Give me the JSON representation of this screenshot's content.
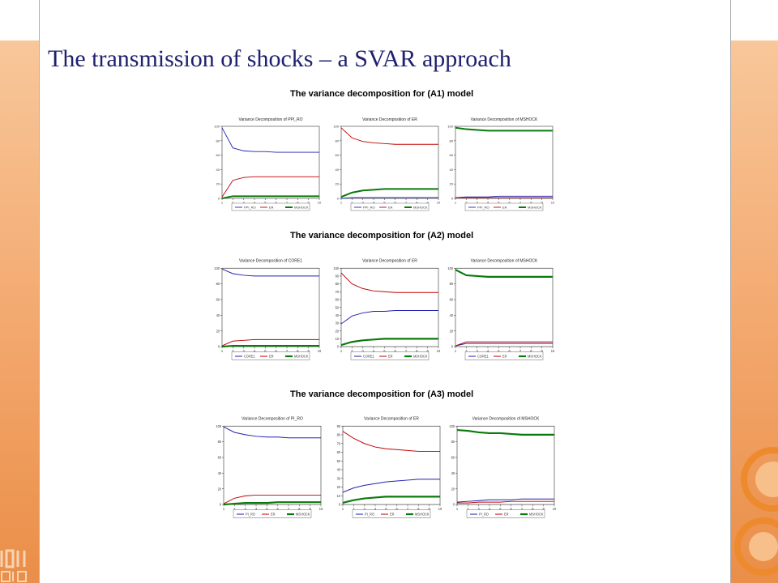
{
  "slide_title": "The transmission of shocks – a SVAR approach",
  "colors": {
    "title": "#1f2070",
    "blue": "#1f1fb0",
    "red": "#c00000",
    "green": "#0a7a0a",
    "accent": "#f0a060"
  },
  "sections": [
    {
      "title": "The variance decomposition for (A1) model"
    },
    {
      "title": "The variance decomposition for (A2) model"
    },
    {
      "title": "The variance decomposition for (A3) model"
    }
  ],
  "chart_data": [
    {
      "type": "line",
      "model": "A1",
      "title": "Variance Decomposition of PPI_RO",
      "x": [
        1,
        2,
        3,
        4,
        5,
        6,
        7,
        8,
        9,
        10
      ],
      "ylim": [
        0,
        100
      ],
      "yticks": [
        0,
        20,
        40,
        60,
        80,
        100
      ],
      "series": [
        {
          "name": "PPI_RO",
          "values": [
            98,
            70,
            66,
            65,
            65,
            64,
            64,
            64,
            64,
            64
          ]
        },
        {
          "name": "ER",
          "values": [
            2,
            25,
            29,
            30,
            30,
            30,
            30,
            30,
            30,
            30
          ]
        },
        {
          "name": "MSHOCK",
          "values": [
            0,
            3,
            3,
            3,
            3,
            3,
            3,
            3,
            3,
            3
          ]
        }
      ]
    },
    {
      "type": "line",
      "model": "A1",
      "title": "Variance Decomposition of ER",
      "x": [
        1,
        2,
        3,
        4,
        5,
        6,
        7,
        8,
        9,
        10
      ],
      "ylim": [
        0,
        100
      ],
      "yticks": [
        0,
        20,
        40,
        60,
        80,
        100
      ],
      "series": [
        {
          "name": "PPI_RO",
          "values": [
            0,
            1,
            1,
            1,
            1,
            1,
            1,
            1,
            1,
            1
          ]
        },
        {
          "name": "ER",
          "values": [
            98,
            84,
            79,
            77,
            76,
            75,
            75,
            75,
            75,
            75
          ]
        },
        {
          "name": "MSHOCK",
          "values": [
            2,
            8,
            11,
            12,
            13,
            13,
            13,
            13,
            13,
            13
          ]
        }
      ]
    },
    {
      "type": "line",
      "model": "A1",
      "title": "Variance Decomposition of MSHOCK",
      "x": [
        1,
        2,
        3,
        4,
        5,
        6,
        7,
        8,
        9,
        10
      ],
      "ylim": [
        0,
        100
      ],
      "yticks": [
        0,
        20,
        40,
        60,
        80,
        100
      ],
      "series": [
        {
          "name": "PPI_RO",
          "values": [
            1,
            2,
            2,
            2,
            3,
            3,
            3,
            3,
            3,
            3
          ]
        },
        {
          "name": "ER",
          "values": [
            1,
            1,
            1,
            1,
            1,
            1,
            1,
            1,
            1,
            1
          ]
        },
        {
          "name": "MSHOCK",
          "values": [
            98,
            96,
            95,
            94,
            94,
            94,
            94,
            94,
            94,
            94
          ]
        }
      ]
    },
    {
      "type": "line",
      "model": "A2",
      "title": "Variance Decomposition of CORE1",
      "x": [
        1,
        2,
        3,
        4,
        5,
        6,
        7,
        8,
        9,
        10
      ],
      "ylim": [
        0,
        100
      ],
      "yticks": [
        0,
        20,
        40,
        60,
        80,
        100
      ],
      "series": [
        {
          "name": "CORE1",
          "values": [
            99,
            93,
            91,
            90,
            90,
            90,
            90,
            90,
            90,
            90
          ]
        },
        {
          "name": "ER",
          "values": [
            1,
            7,
            8,
            9,
            9,
            9,
            9,
            9,
            9,
            9
          ]
        },
        {
          "name": "MSHOCK",
          "values": [
            0,
            1,
            1,
            1,
            1,
            1,
            1,
            1,
            1,
            1
          ]
        }
      ]
    },
    {
      "type": "line",
      "model": "A2",
      "title": "Variance Decomposition of ER",
      "x": [
        1,
        2,
        3,
        4,
        5,
        6,
        7,
        8,
        9,
        10
      ],
      "ylim": [
        0,
        100
      ],
      "yticks": [
        0,
        10,
        20,
        30,
        40,
        50,
        60,
        70,
        80,
        90,
        100
      ],
      "series": [
        {
          "name": "CORE1",
          "values": [
            29,
            39,
            43,
            45,
            45,
            46,
            46,
            46,
            46,
            46
          ]
        },
        {
          "name": "ER",
          "values": [
            94,
            80,
            74,
            71,
            70,
            69,
            69,
            69,
            69,
            69
          ]
        },
        {
          "name": "MSHOCK",
          "values": [
            2,
            6,
            8,
            9,
            10,
            10,
            10,
            10,
            10,
            10
          ]
        }
      ]
    },
    {
      "type": "line",
      "model": "A2",
      "title": "Variance Decomposition of MSHOCK",
      "x": [
        1,
        2,
        3,
        4,
        5,
        6,
        7,
        8,
        9,
        10
      ],
      "ylim": [
        0,
        100
      ],
      "yticks": [
        0,
        20,
        40,
        60,
        80,
        100
      ],
      "series": [
        {
          "name": "CORE1",
          "values": [
            1,
            4,
            4,
            4,
            4,
            4,
            4,
            4,
            4,
            4
          ]
        },
        {
          "name": "ER",
          "values": [
            1,
            6,
            6,
            6,
            6,
            6,
            6,
            6,
            6,
            6
          ]
        },
        {
          "name": "MSHOCK",
          "values": [
            98,
            91,
            90,
            89,
            89,
            89,
            89,
            89,
            89,
            89
          ]
        }
      ]
    },
    {
      "type": "line",
      "model": "A3",
      "title": "Variance Decomposition of PI_RO",
      "x": [
        1,
        2,
        3,
        4,
        5,
        6,
        7,
        8,
        9,
        10
      ],
      "ylim": [
        0,
        100
      ],
      "yticks": [
        0,
        20,
        40,
        60,
        80,
        100
      ],
      "series": [
        {
          "name": "PI_RO",
          "values": [
            99,
            92,
            89,
            87,
            86,
            86,
            85,
            85,
            85,
            85
          ]
        },
        {
          "name": "ER",
          "values": [
            1,
            8,
            11,
            12,
            12,
            12,
            12,
            12,
            12,
            12
          ]
        },
        {
          "name": "MSHOCK",
          "values": [
            0,
            1,
            2,
            2,
            2,
            3,
            3,
            3,
            3,
            3
          ]
        }
      ]
    },
    {
      "type": "line",
      "model": "A3",
      "title": "Variance Decomposition of ER",
      "x": [
        1,
        2,
        3,
        4,
        5,
        6,
        7,
        8,
        9,
        10
      ],
      "ylim": [
        0,
        90
      ],
      "yticks": [
        0,
        10,
        20,
        30,
        40,
        50,
        60,
        70,
        80,
        90
      ],
      "series": [
        {
          "name": "PI_RO",
          "values": [
            14,
            19,
            22,
            24,
            26,
            27,
            28,
            29,
            29,
            29
          ]
        },
        {
          "name": "ER",
          "values": [
            84,
            76,
            70,
            66,
            64,
            63,
            62,
            61,
            61,
            61
          ]
        },
        {
          "name": "MSHOCK",
          "values": [
            2,
            5,
            7,
            8,
            9,
            9,
            9,
            9,
            9,
            9
          ]
        }
      ]
    },
    {
      "type": "line",
      "model": "A3",
      "title": "Variance Decomposition of MSHOCK",
      "x": [
        1,
        2,
        3,
        4,
        5,
        6,
        7,
        8,
        9,
        10
      ],
      "ylim": [
        0,
        100
      ],
      "yticks": [
        0,
        20,
        40,
        60,
        80,
        100
      ],
      "series": [
        {
          "name": "PI_RO",
          "values": [
            3,
            4,
            5,
            6,
            6,
            6,
            7,
            7,
            7,
            7
          ]
        },
        {
          "name": "ER",
          "values": [
            2,
            2,
            3,
            3,
            3,
            4,
            4,
            4,
            4,
            4
          ]
        },
        {
          "name": "MSHOCK",
          "values": [
            95,
            94,
            92,
            91,
            91,
            90,
            89,
            89,
            89,
            89
          ]
        }
      ]
    }
  ]
}
